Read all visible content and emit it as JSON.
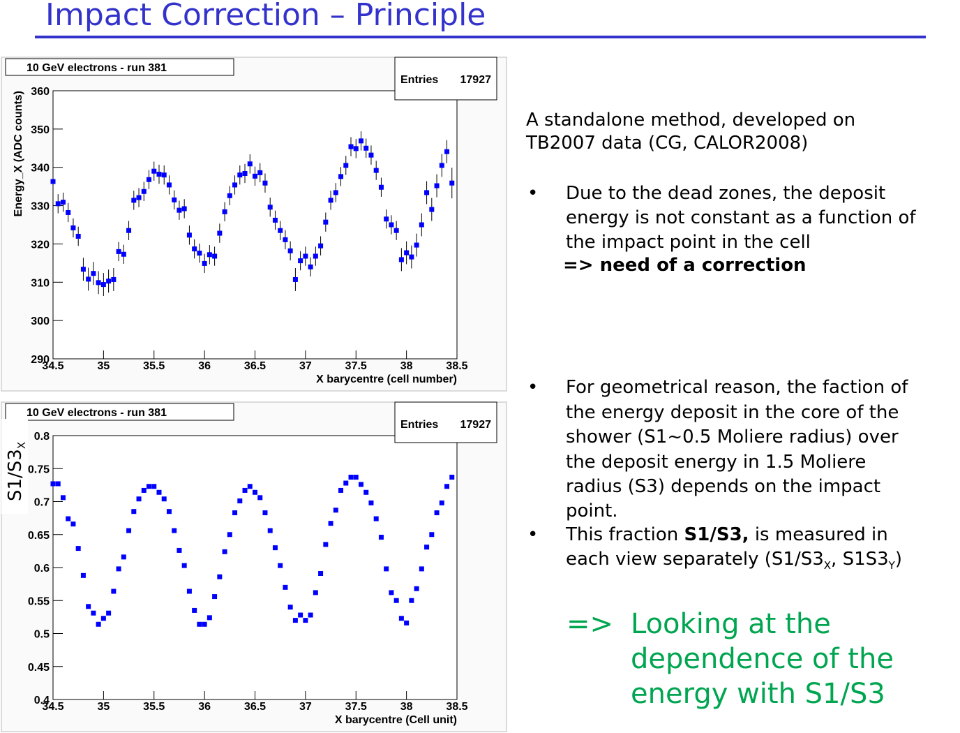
{
  "slide": {
    "title": "Impact Correction – Principle",
    "intro": [
      "A standalone method, developed on",
      "TB2007 data (CG, CALOR2008)"
    ],
    "bullet": "•",
    "point1": {
      "lines": [
        "Due to the dead zones, the deposit",
        "energy is not constant as a function of",
        "the impact point in the cell"
      ],
      "conclusion": "=> need of a correction"
    },
    "point2": {
      "lines": [
        "For geometrical reason, the faction of",
        "the energy deposit in the core of the",
        "shower (S1~0.5 Moliere radius) over",
        "the deposit energy in 1.5 Moliere",
        "radius (S3) depends on the impact",
        "point."
      ]
    },
    "point3": {
      "line1": [
        "This fraction ",
        "S1/S3,",
        " is measured in"
      ],
      "line2": [
        "each view separately (S1/S3",
        "X",
        ", S1S3",
        "Y",
        ")"
      ]
    },
    "result": {
      "arrow": "=>",
      "lines": [
        "Looking at the",
        "dependence of the",
        "energy with S1/S3"
      ]
    },
    "side_label": [
      "S1/S3",
      "X"
    ]
  },
  "chart_data": [
    {
      "type": "scatter",
      "title": "10 GeV electrons - run 381",
      "stats": {
        "label": "Entries",
        "value": 17927
      },
      "x_label": "X barycentre (cell number)",
      "y_label": "Energy_X (ADC counts)",
      "color": "#0000ff",
      "xlim": [
        34.5,
        38.5
      ],
      "xticks": [
        34.5,
        35,
        35.5,
        36,
        36.5,
        37,
        37.5,
        38,
        38.5
      ],
      "ylim": [
        290,
        360
      ],
      "yticks": [
        290,
        300,
        310,
        320,
        330,
        340,
        350,
        360
      ],
      "x": [
        34.5,
        34.55,
        34.6,
        34.65,
        34.7,
        34.75,
        34.8,
        34.85,
        34.9,
        34.95,
        35,
        35.05,
        35.1,
        35.15,
        35.2,
        35.25,
        35.3,
        35.35,
        35.4,
        35.45,
        35.5,
        35.55,
        35.6,
        35.65,
        35.7,
        35.75,
        35.8,
        35.85,
        35.9,
        35.95,
        36,
        36.05,
        36.1,
        36.15,
        36.2,
        36.25,
        36.3,
        36.35,
        36.4,
        36.45,
        36.5,
        36.55,
        36.6,
        36.65,
        36.7,
        36.75,
        36.8,
        36.85,
        36.9,
        36.95,
        37,
        37.05,
        37.1,
        37.15,
        37.2,
        37.25,
        37.3,
        37.35,
        37.4,
        37.45,
        37.5,
        37.55,
        37.6,
        37.65,
        37.7,
        37.75,
        37.8,
        37.85,
        37.9,
        37.95,
        38,
        38.05,
        38.1,
        38.15,
        38.2,
        38.25,
        38.3,
        38.35,
        38.4,
        38.45
      ],
      "values": [
        336.3,
        330.5,
        330.9,
        328.2,
        324.2,
        322.0,
        313.4,
        310.8,
        312.3,
        309.9,
        309.4,
        310.3,
        310.7,
        318.0,
        317.3,
        323.5,
        331.4,
        332.1,
        333.7,
        336.8,
        339.0,
        338.2,
        338.0,
        335.4,
        331.5,
        328.8,
        329.2,
        322.3,
        318.7,
        317.6,
        314.9,
        317.2,
        316.8,
        322.8,
        328.4,
        332.6,
        335.4,
        338.0,
        338.4,
        340.9,
        337.7,
        338.6,
        335.9,
        329.6,
        326.2,
        323.5,
        321.1,
        318.2,
        310.7,
        315.6,
        316.8,
        314.0,
        316.8,
        319.5,
        325.7,
        331.4,
        333.4,
        337.6,
        340.5,
        345.4,
        344.9,
        346.9,
        345.0,
        343.2,
        339.2,
        334.8,
        326.5,
        325.0,
        323.5,
        315.9,
        317.7,
        316.6,
        319.7,
        325.0,
        333.4,
        329.0,
        335.2,
        340.5,
        344.1,
        335.9
      ],
      "errors": [
        2.5,
        2.5,
        2.5,
        2.5,
        2.5,
        2.5,
        3,
        3,
        3,
        3,
        3,
        3,
        3,
        2.5,
        2.5,
        2.5,
        2.5,
        2.5,
        2.5,
        2.5,
        2.5,
        2.5,
        2.5,
        2.5,
        2.5,
        2.5,
        2.5,
        2.5,
        2.5,
        2.5,
        2.5,
        2.5,
        2.5,
        2.5,
        2.5,
        2.5,
        2.5,
        2.5,
        2.5,
        2.5,
        2.5,
        2.5,
        2.5,
        2.5,
        2.5,
        2.5,
        2.5,
        2.5,
        3,
        2.5,
        2.5,
        2.5,
        2.5,
        2.5,
        2.5,
        2.5,
        2.5,
        2.5,
        2.5,
        2.5,
        2.5,
        2.5,
        2.5,
        2.5,
        2.5,
        2.5,
        2.5,
        2.5,
        2.5,
        3,
        3,
        3,
        3,
        3,
        3,
        3,
        3,
        3,
        3,
        4
      ]
    },
    {
      "type": "scatter",
      "title": "10 GeV electrons - run 381",
      "stats": {
        "label": "Entries",
        "value": 17927
      },
      "x_label": "X barycentre (Cell unit)",
      "color": "#0000ff",
      "xlim": [
        34.5,
        38.5
      ],
      "xticks": [
        34.5,
        35,
        35.5,
        36,
        36.5,
        37,
        37.5,
        38,
        38.5
      ],
      "ylim": [
        0.4,
        0.8
      ],
      "yticks": [
        0.4,
        0.45,
        0.5,
        0.55,
        0.6,
        0.65,
        0.7,
        0.75,
        0.8
      ],
      "x": [
        34.5,
        34.55,
        34.6,
        34.65,
        34.7,
        34.75,
        34.8,
        34.85,
        34.9,
        34.95,
        35,
        35.05,
        35.1,
        35.15,
        35.2,
        35.25,
        35.3,
        35.35,
        35.4,
        35.45,
        35.5,
        35.55,
        35.6,
        35.65,
        35.7,
        35.75,
        35.8,
        35.85,
        35.9,
        35.95,
        36,
        36.05,
        36.1,
        36.15,
        36.2,
        36.25,
        36.3,
        36.35,
        36.4,
        36.45,
        36.5,
        36.55,
        36.6,
        36.65,
        36.7,
        36.75,
        36.8,
        36.85,
        36.9,
        36.95,
        37,
        37.05,
        37.1,
        37.15,
        37.2,
        37.25,
        37.3,
        37.35,
        37.4,
        37.45,
        37.5,
        37.55,
        37.6,
        37.65,
        37.7,
        37.75,
        37.8,
        37.85,
        37.9,
        37.95,
        38,
        38.05,
        38.1,
        38.15,
        38.2,
        38.25,
        38.3,
        38.35,
        38.4,
        38.45
      ],
      "values": [
        0.727,
        0.727,
        0.706,
        0.674,
        0.666,
        0.629,
        0.588,
        0.541,
        0.531,
        0.514,
        0.523,
        0.531,
        0.564,
        0.598,
        0.616,
        0.656,
        0.685,
        0.704,
        0.717,
        0.723,
        0.723,
        0.714,
        0.704,
        0.685,
        0.656,
        0.626,
        0.603,
        0.564,
        0.535,
        0.514,
        0.514,
        0.524,
        0.556,
        0.586,
        0.624,
        0.65,
        0.683,
        0.701,
        0.717,
        0.723,
        0.714,
        0.706,
        0.683,
        0.656,
        0.63,
        0.603,
        0.57,
        0.54,
        0.52,
        0.528,
        0.52,
        0.528,
        0.562,
        0.591,
        0.635,
        0.667,
        0.687,
        0.717,
        0.728,
        0.737,
        0.737,
        0.726,
        0.714,
        0.698,
        0.674,
        0.646,
        0.598,
        0.562,
        0.55,
        0.523,
        0.516,
        0.55,
        0.568,
        0.598,
        0.631,
        0.65,
        0.683,
        0.698,
        0.723,
        0.737
      ]
    }
  ]
}
